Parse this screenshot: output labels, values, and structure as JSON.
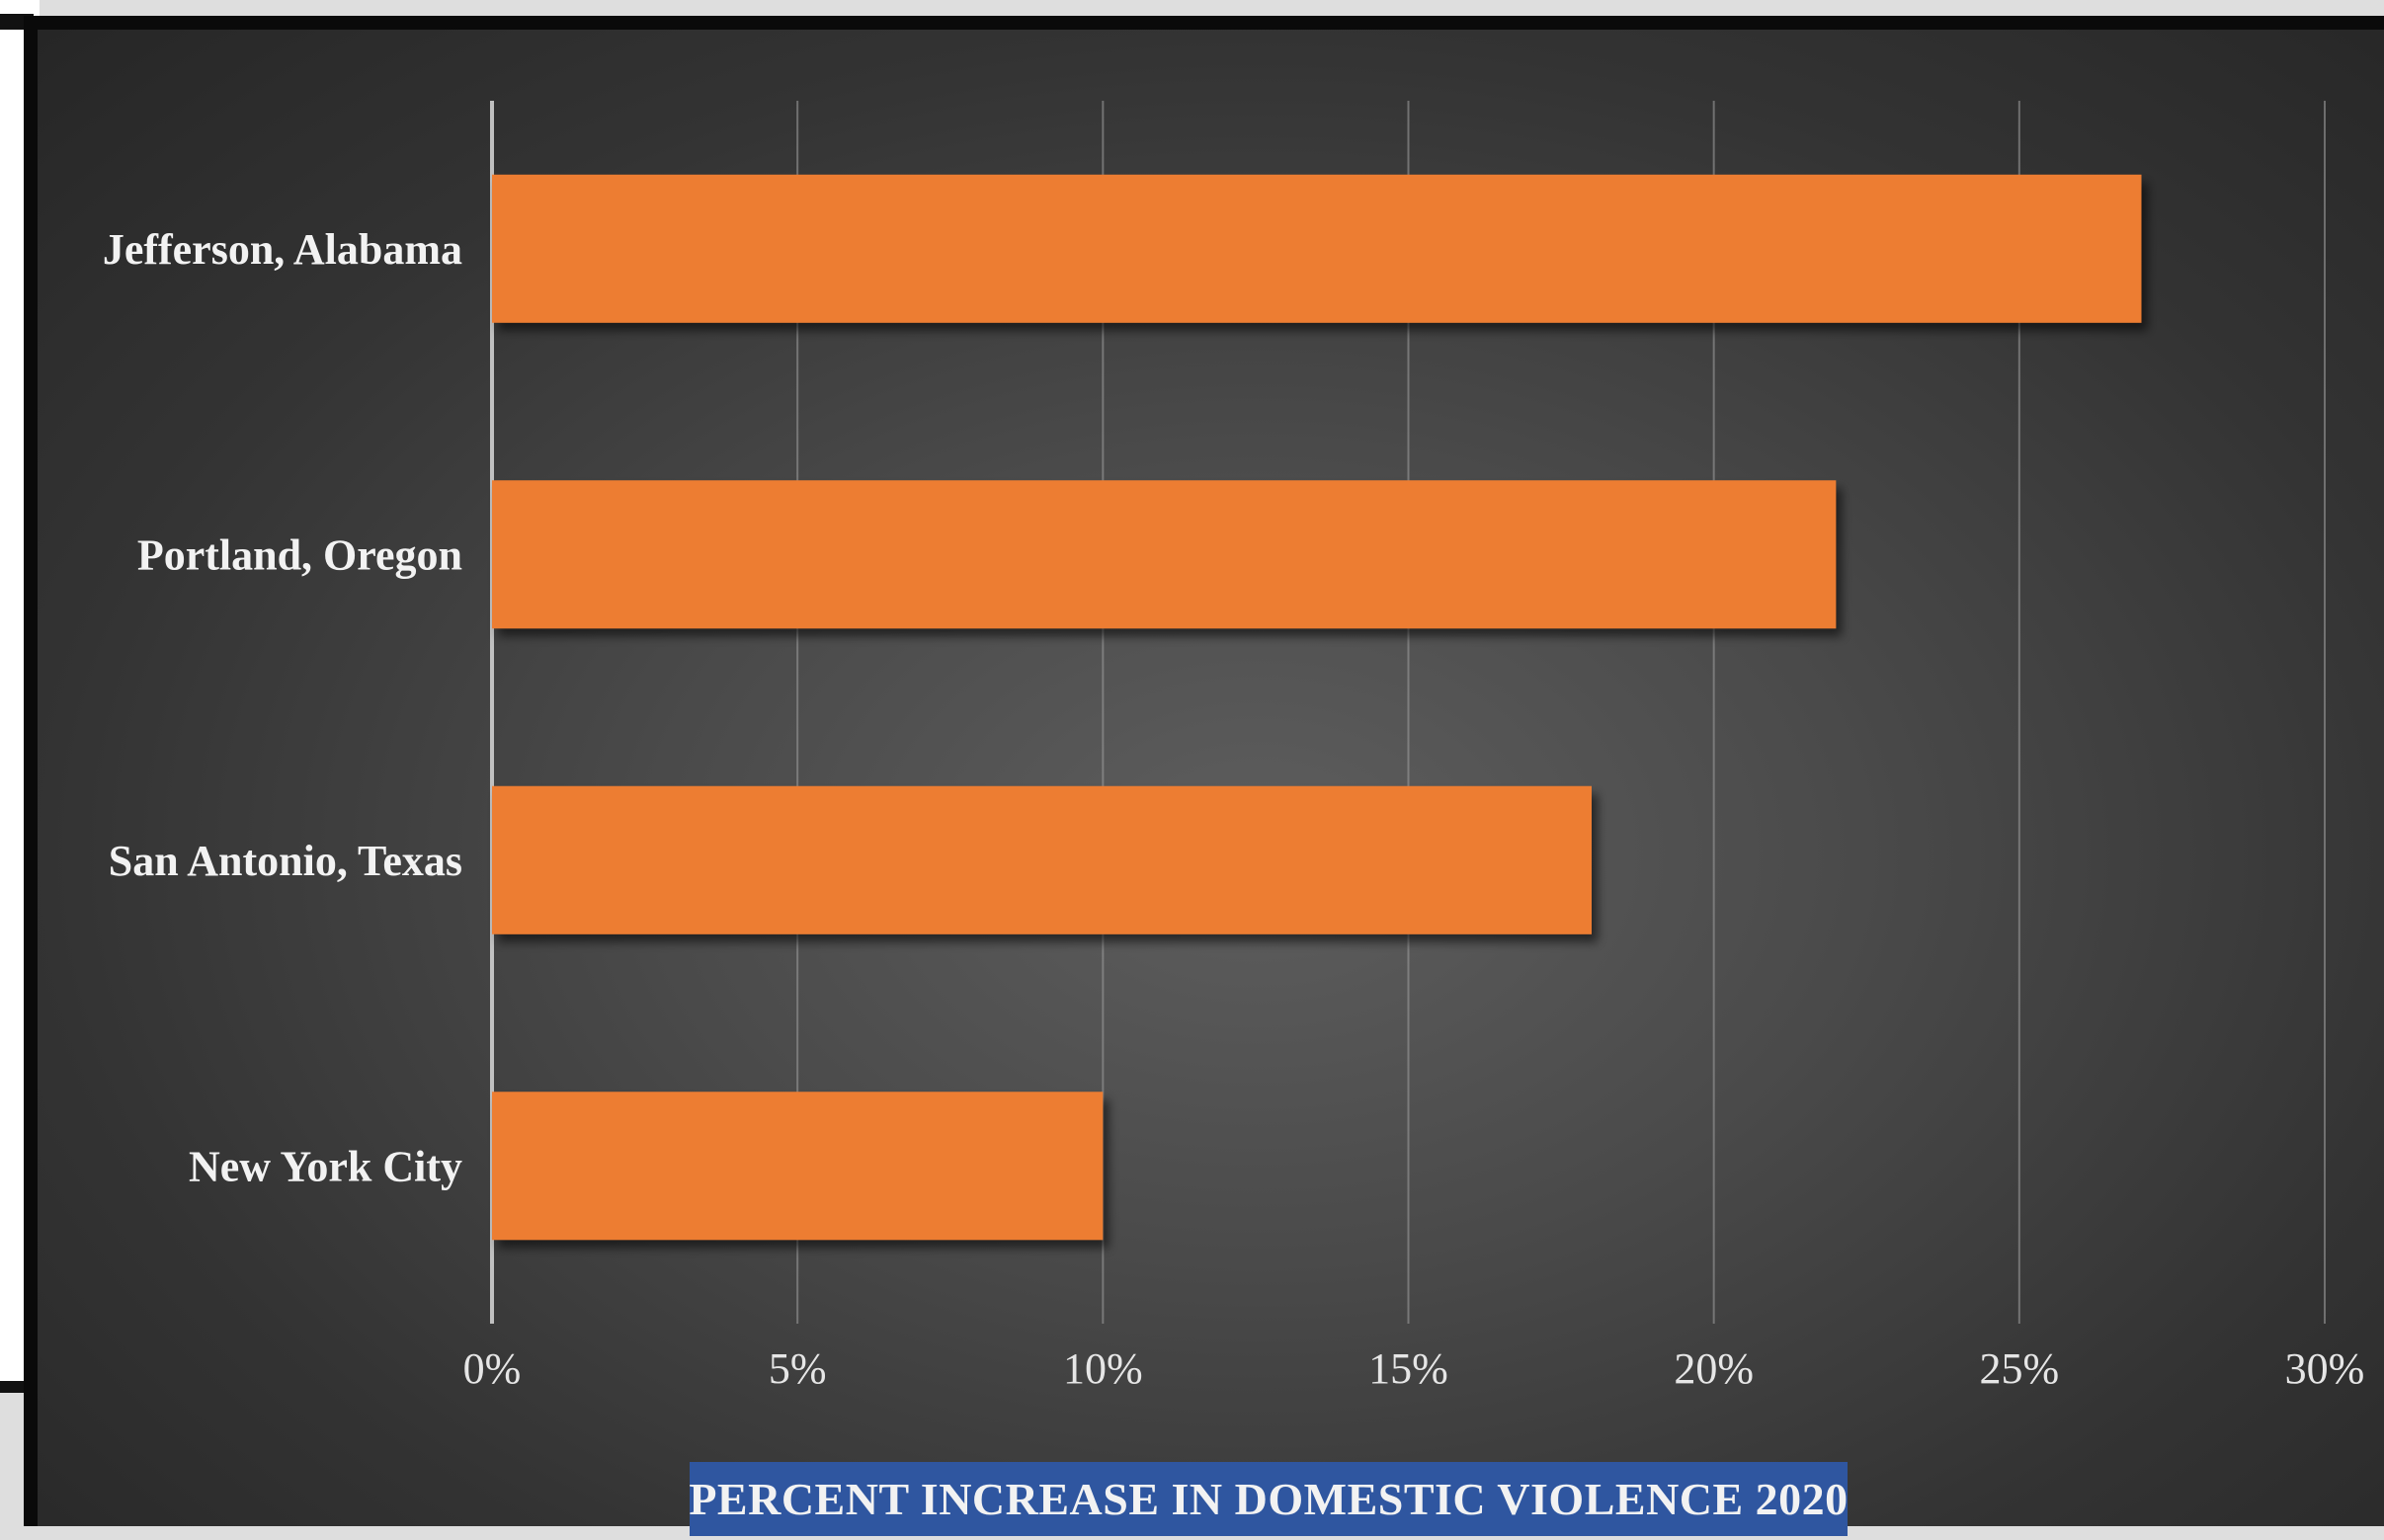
{
  "chart_data": {
    "type": "bar",
    "orientation": "horizontal",
    "title": "",
    "xlabel": "PERCENT INCREASE IN DOMESTIC VIOLENCE 2020",
    "ylabel": "",
    "categories": [
      "Jefferson, Alabama",
      "Portland, Oregon",
      "San Antonio, Texas",
      "New York City"
    ],
    "values": [
      27,
      22,
      18,
      10
    ],
    "xlim": [
      0,
      30
    ],
    "ticks": [
      "0%",
      "5%",
      "10%",
      "15%",
      "20%",
      "25%",
      "30%"
    ],
    "grid": "vertical",
    "legend": "none",
    "colors": {
      "bar": "#ed7d31",
      "background": "#3f3f3f",
      "gridline": "#9a9a9a",
      "text": "#f2f2f2",
      "axis_title_background": "#2f56a0"
    }
  }
}
